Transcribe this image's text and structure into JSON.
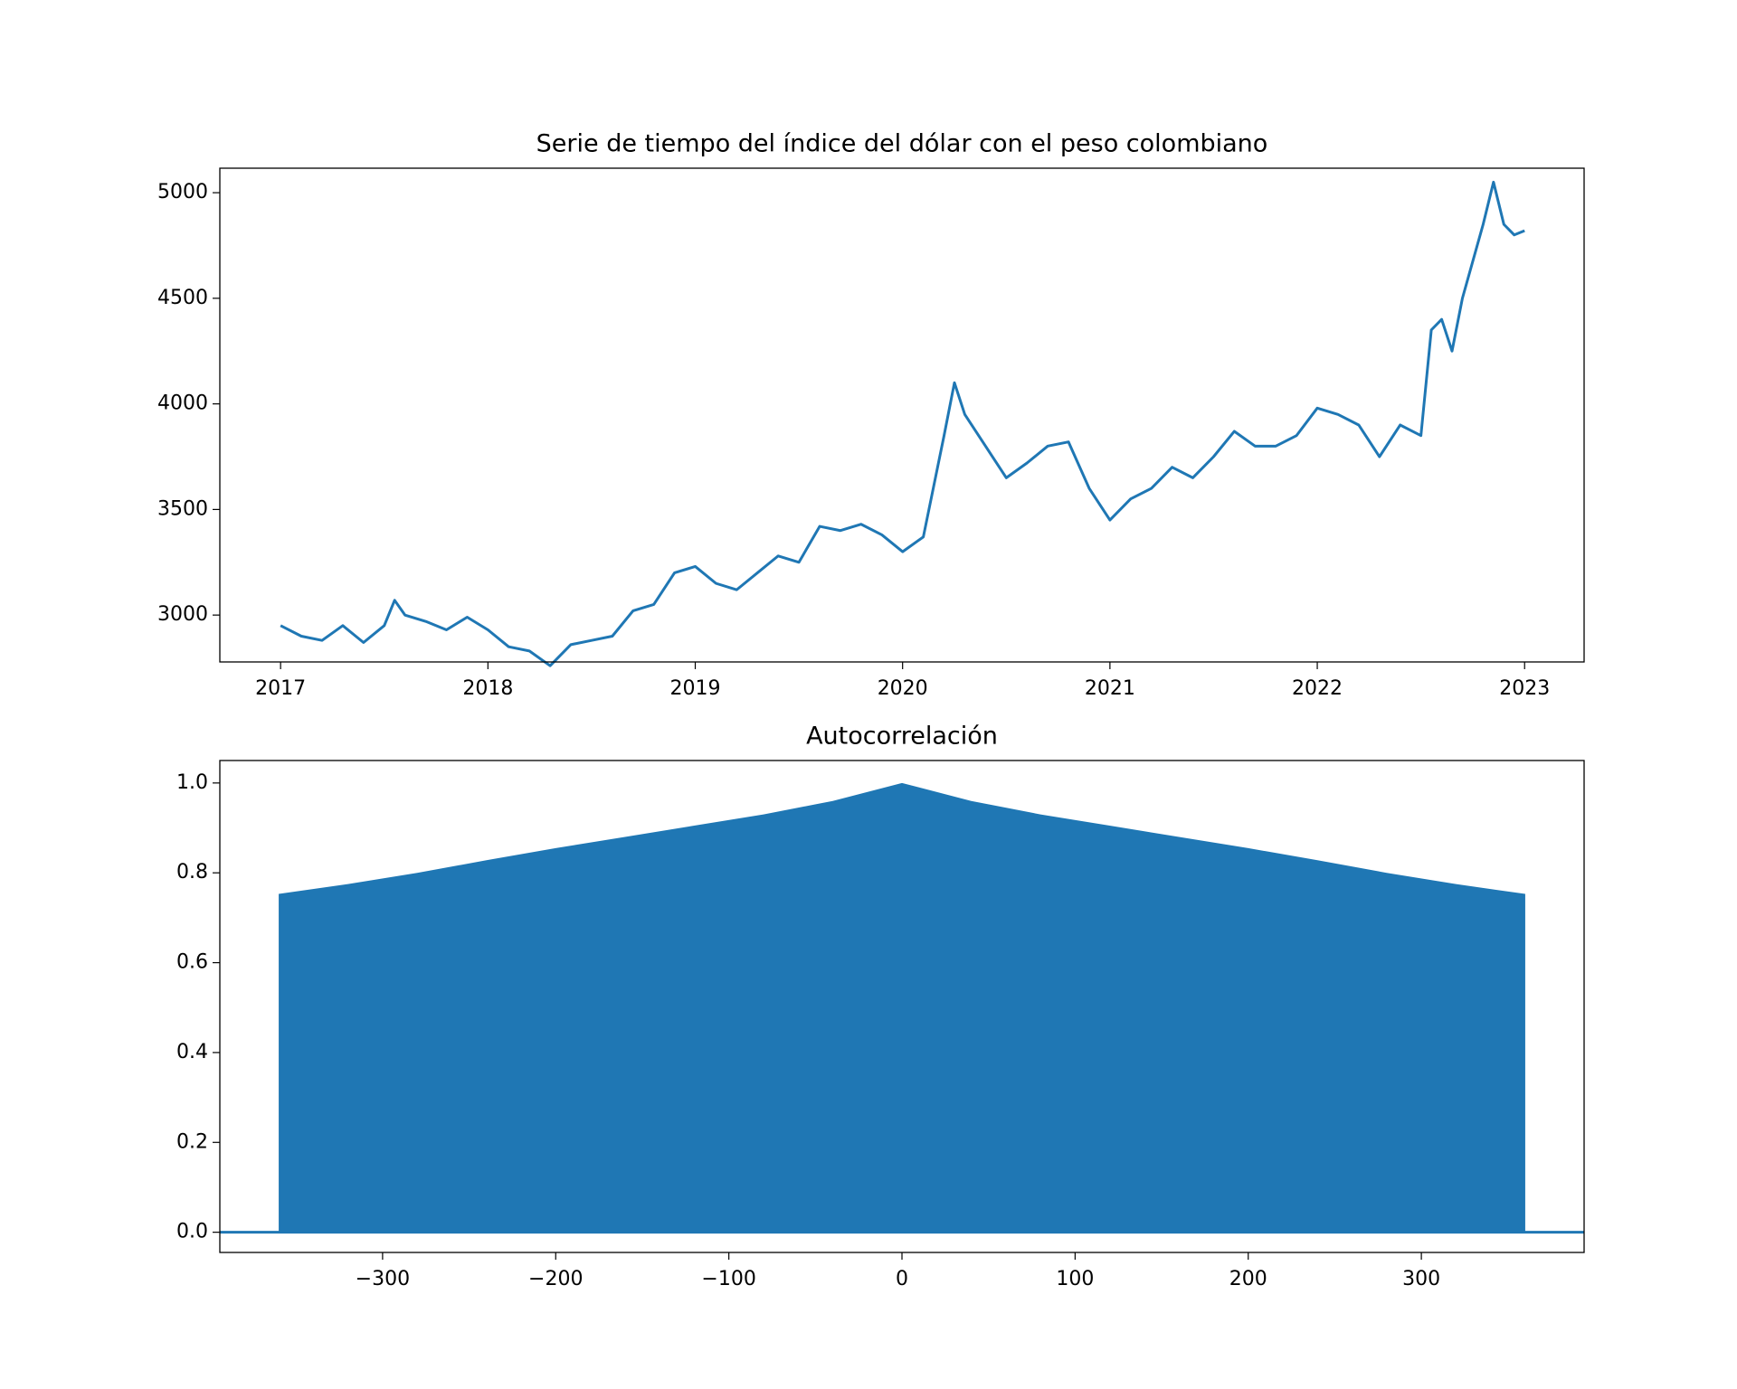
{
  "chart_data": [
    {
      "type": "line",
      "title": "Serie de tiempo del índice del dólar con el peso colombiano",
      "color": "#1f77b4",
      "x": [
        2017.0,
        2017.1,
        2017.2,
        2017.3,
        2017.4,
        2017.5,
        2017.55,
        2017.6,
        2017.7,
        2017.8,
        2017.9,
        2018.0,
        2018.1,
        2018.2,
        2018.3,
        2018.4,
        2018.5,
        2018.6,
        2018.7,
        2018.8,
        2018.9,
        2019.0,
        2019.1,
        2019.2,
        2019.3,
        2019.4,
        2019.5,
        2019.6,
        2019.7,
        2019.8,
        2019.9,
        2020.0,
        2020.1,
        2020.2,
        2020.25,
        2020.3,
        2020.4,
        2020.5,
        2020.6,
        2020.7,
        2020.8,
        2020.9,
        2021.0,
        2021.1,
        2021.2,
        2021.3,
        2021.4,
        2021.5,
        2021.6,
        2021.7,
        2021.8,
        2021.9,
        2022.0,
        2022.1,
        2022.2,
        2022.3,
        2022.4,
        2022.5,
        2022.55,
        2022.6,
        2022.65,
        2022.7,
        2022.8,
        2022.85,
        2022.9,
        2022.95,
        2023.0
      ],
      "values": [
        2950,
        2900,
        2880,
        2950,
        2870,
        2950,
        3070,
        3000,
        2970,
        2930,
        2990,
        2930,
        2850,
        2830,
        2760,
        2860,
        2880,
        2900,
        3020,
        3050,
        3200,
        3230,
        3150,
        3120,
        3200,
        3280,
        3250,
        3420,
        3400,
        3430,
        3380,
        3300,
        3370,
        3850,
        4100,
        3950,
        3800,
        3650,
        3720,
        3800,
        3820,
        3600,
        3450,
        3550,
        3600,
        3700,
        3650,
        3750,
        3870,
        3800,
        3800,
        3850,
        3980,
        3950,
        3900,
        3750,
        3900,
        3850,
        4350,
        4400,
        4250,
        4500,
        4850,
        5050,
        4850,
        4800,
        4820
      ],
      "xlim": [
        2016.707,
        2023.287
      ],
      "xticks": [
        2017,
        2018,
        2019,
        2020,
        2021,
        2022,
        2023
      ],
      "ylim": [
        2778,
        5116
      ],
      "yticks": [
        3000,
        3500,
        4000,
        4500,
        5000
      ]
    },
    {
      "type": "area",
      "title": "Autocorrelación",
      "color": "#1f77b4",
      "x": [
        -360,
        -320,
        -280,
        -240,
        -200,
        -160,
        -120,
        -80,
        -40,
        0,
        40,
        80,
        120,
        160,
        200,
        240,
        280,
        320,
        360
      ],
      "values": [
        0.753,
        0.775,
        0.8,
        0.828,
        0.855,
        0.88,
        0.905,
        0.93,
        0.96,
        1.0,
        0.96,
        0.93,
        0.905,
        0.88,
        0.855,
        0.828,
        0.8,
        0.775,
        0.753
      ],
      "xlim": [
        -394,
        394
      ],
      "xticks": [
        {
          "value": -300,
          "label": "−300"
        },
        {
          "value": -200,
          "label": "−200"
        },
        {
          "value": -100,
          "label": "−100"
        },
        0,
        100,
        200,
        300
      ],
      "ylim": [
        -0.045,
        1.05
      ],
      "yticks": [
        {
          "value": 0,
          "label": "0.0"
        },
        0.2,
        0.4,
        0.6,
        0.8,
        {
          "value": 1,
          "label": "1.0"
        }
      ]
    }
  ]
}
